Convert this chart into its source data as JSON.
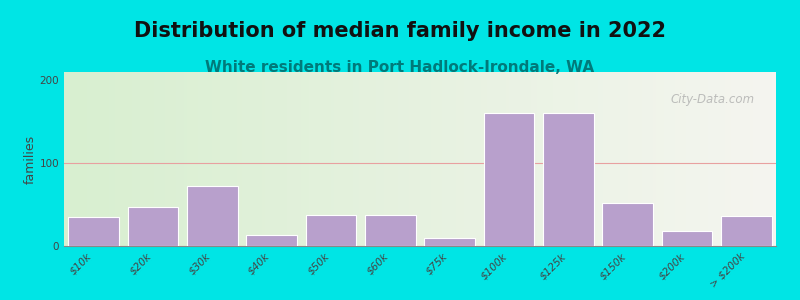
{
  "title": "Distribution of median family income in 2022",
  "subtitle": "White residents in Port Hadlock-Irondale, WA",
  "ylabel": "families",
  "background_color": "#00e5e5",
  "plot_bg_left": "#d8efd0",
  "plot_bg_right": "#f5f5f0",
  "bar_color": "#b8a0cc",
  "bar_edgecolor": "#ffffff",
  "grid_color": "#e8a0a0",
  "categories": [
    "$10k",
    "$20k",
    "$30k",
    "$40k",
    "$50k",
    "$60k",
    "$75k",
    "$100k",
    "$125k",
    "$150k",
    "$200k",
    "> $200k"
  ],
  "values": [
    35,
    47,
    72,
    13,
    38,
    38,
    10,
    160,
    160,
    52,
    18,
    36
  ],
  "ylim": [
    0,
    210
  ],
  "yticks": [
    0,
    100,
    200
  ],
  "watermark": "City-Data.com",
  "title_fontsize": 15,
  "subtitle_fontsize": 11,
  "ylabel_fontsize": 9,
  "tick_fontsize": 7.5
}
